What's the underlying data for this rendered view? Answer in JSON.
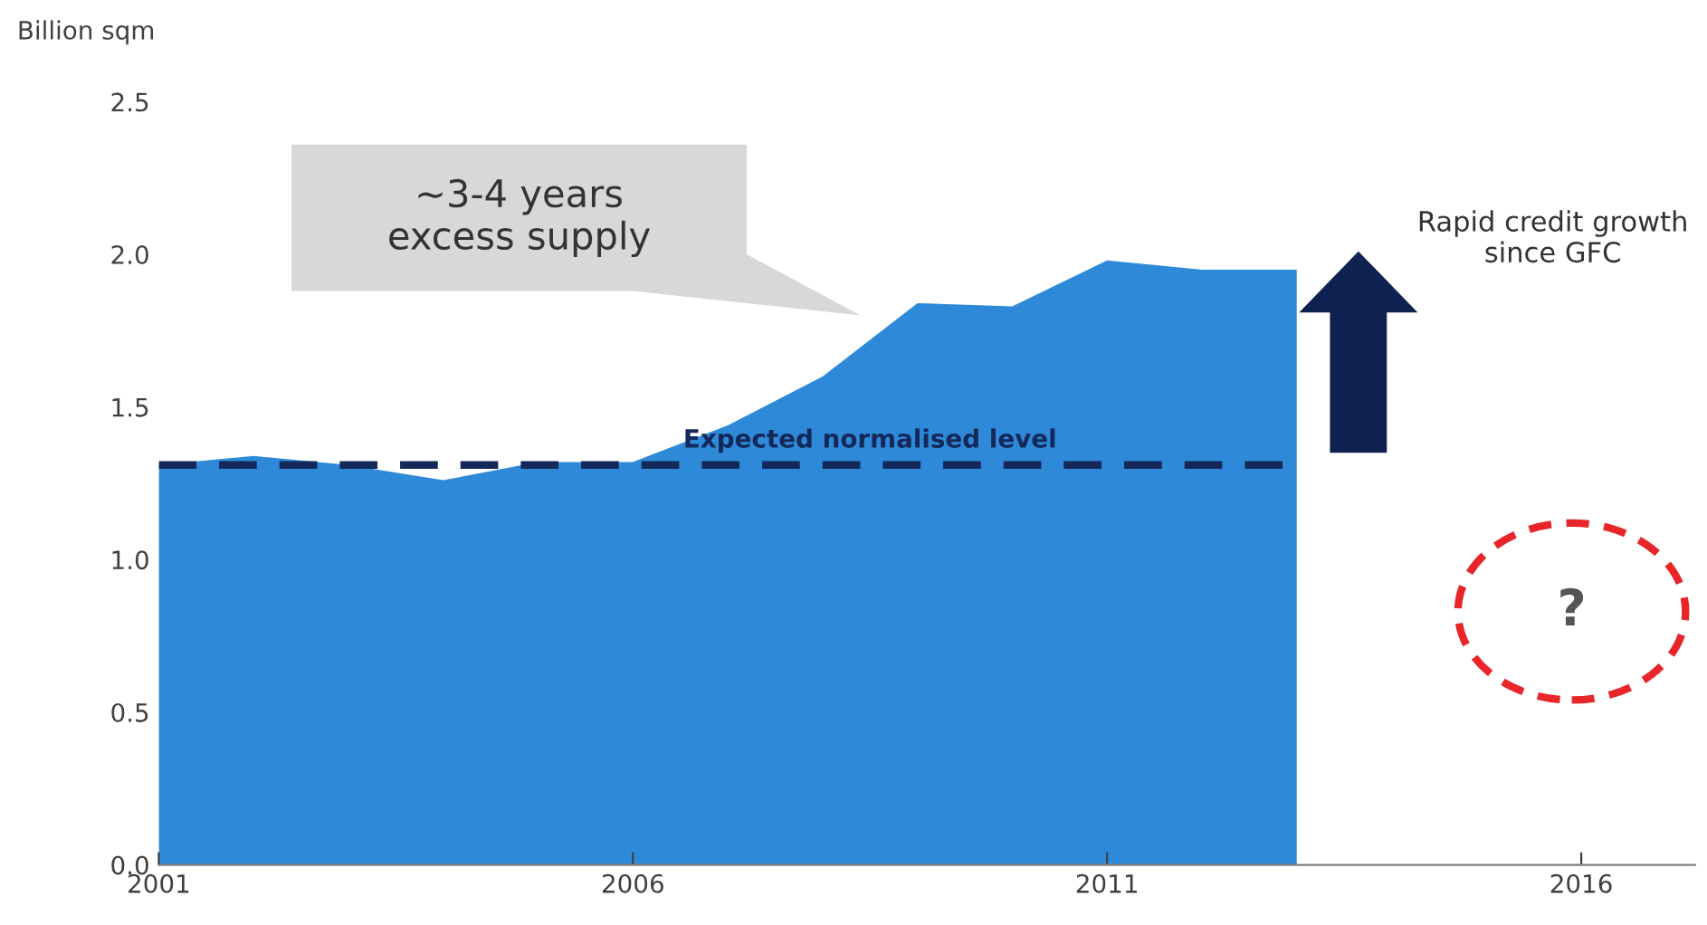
{
  "chart_data": {
    "type": "area",
    "ylabel": "Billion sqm",
    "x": [
      2001,
      2002,
      2003,
      2004,
      2005,
      2006,
      2007,
      2008,
      2009,
      2010,
      2011,
      2012,
      2013
    ],
    "series": [
      {
        "color": "#2e8ad8",
        "values": [
          1.31,
          1.34,
          1.31,
          1.26,
          1.32,
          1.32,
          1.44,
          1.6,
          1.84,
          1.83,
          1.98,
          1.95,
          1.95
        ]
      }
    ],
    "xlim": [
      2001,
      2017.2
    ],
    "xticks": [
      2001,
      2006,
      2011,
      2016
    ],
    "ylim": [
      0,
      2.5
    ],
    "yticks": [
      {
        "value": 0,
        "label": "0.0"
      },
      0.5,
      {
        "value": 1,
        "label": "1.0"
      },
      1.5,
      {
        "value": 2,
        "label": "2.0"
      },
      2.5
    ],
    "ref_lines": [
      {
        "axis": "y",
        "value": 1.31,
        "label": "Expected normalised level",
        "color": "#14285a",
        "line_style": "dashed"
      }
    ],
    "annotations": [
      "~3-4 years\nexcess supply",
      "Rapid credit growth\nsince GFC",
      "?"
    ],
    "grid": false,
    "legend": false
  }
}
